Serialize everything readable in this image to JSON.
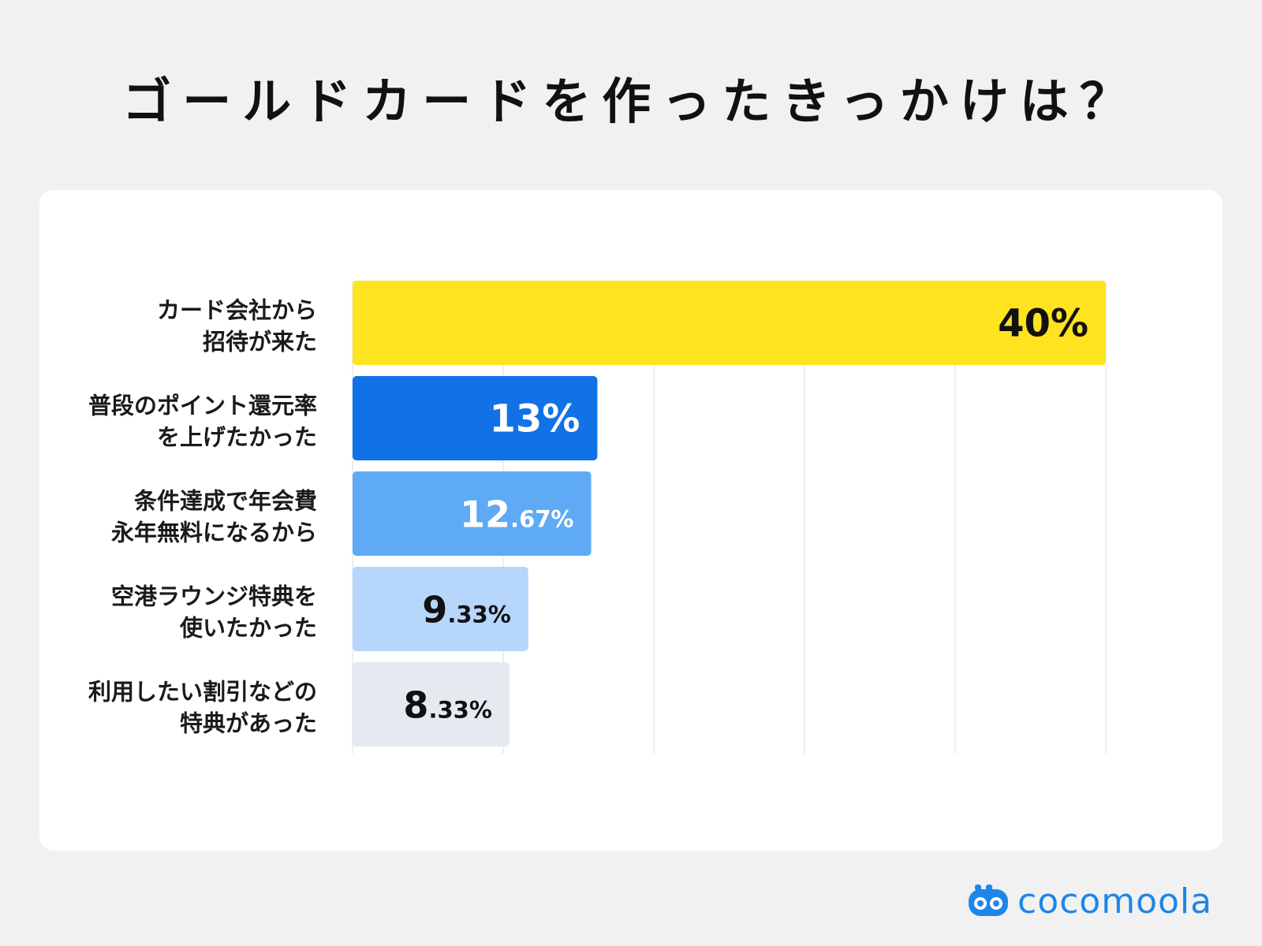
{
  "title": "ゴールドカードを作ったきっかけは？",
  "logo": {
    "text": "cocomoola",
    "icon": "cocomoola-logo-icon"
  },
  "colors": {
    "background": "#f1f1f1",
    "card": "#ffffff",
    "grid": "#e9e9ef",
    "brand": "#1f86e8"
  },
  "chart_data": {
    "type": "bar",
    "orientation": "horizontal",
    "title": "ゴールドカードを作ったきっかけは？",
    "xlabel": "",
    "ylabel": "",
    "xlim": [
      0,
      40
    ],
    "grid": true,
    "legend": "none",
    "categories": [
      [
        "カード会社から",
        "招待が来た"
      ],
      [
        "普段のポイント還元率",
        "を上げたかった"
      ],
      [
        "条件達成で年会費",
        "永年無料になるから"
      ],
      [
        "空港ラウンジ特典を",
        "使いたかった"
      ],
      [
        "利用したい割引などの",
        "特典があった"
      ]
    ],
    "values": [
      40,
      13,
      12.67,
      9.33,
      8.33
    ],
    "labels": [
      {
        "int": "40",
        "dec": "",
        "pct": "%"
      },
      {
        "int": "13",
        "dec": "",
        "pct": "%"
      },
      {
        "int": "12",
        "dec": ".67",
        "pct": "%"
      },
      {
        "int": "9",
        "dec": ".33",
        "pct": "%"
      },
      {
        "int": "8",
        "dec": ".33",
        "pct": "%"
      }
    ],
    "bar_colors": [
      "#ffe320",
      "#1172e6",
      "#5eaaf4",
      "#b6d6fb",
      "#e5e9f0"
    ],
    "label_colors": [
      "#111111",
      "#ffffff",
      "#ffffff",
      "#111111",
      "#111111"
    ]
  }
}
